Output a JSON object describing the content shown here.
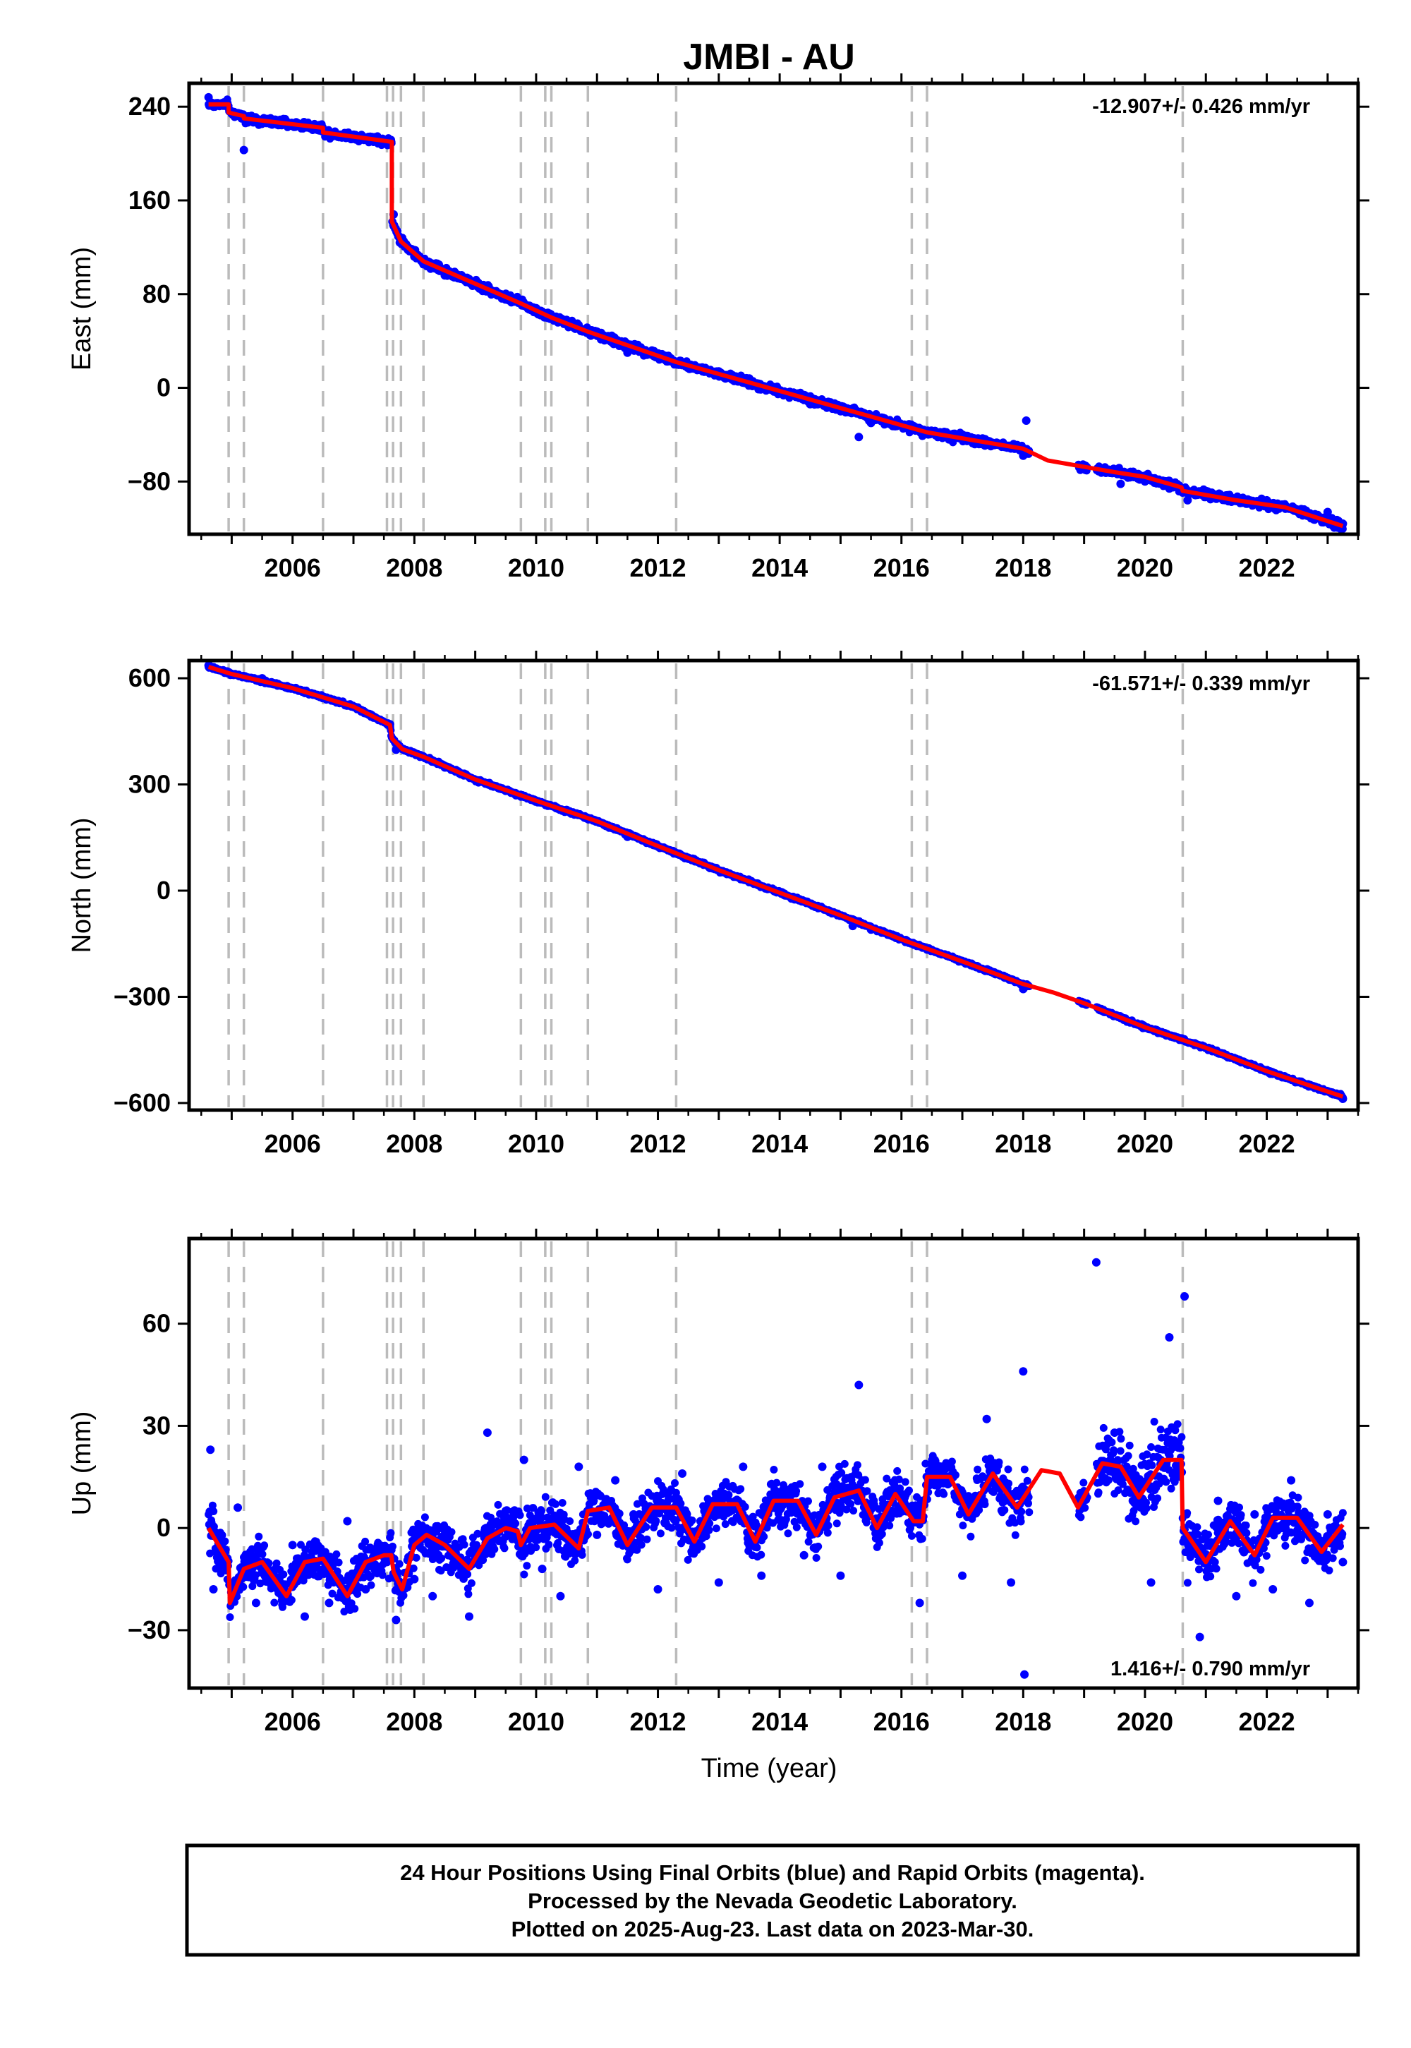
{
  "title": "JMBI - AU",
  "xlabel": "Time (year)",
  "x_ticks": [
    2006,
    2008,
    2010,
    2012,
    2014,
    2016,
    2018,
    2020,
    2022
  ],
  "footer": {
    "line1": "24 Hour Positions Using Final Orbits (blue) and Rapid Orbits (magenta).",
    "line2": "Processed by the Nevada Geodetic Laboratory.",
    "line3": "Plotted on 2025-Aug-23. Last data on 2023-Mar-30."
  },
  "colors": {
    "observations": "#0000ff",
    "model": "#ff0000",
    "equipment_change_lines": "#bbbbbb",
    "frame": "#000000"
  },
  "chart_data": [
    {
      "type": "scatter",
      "component": "East",
      "ylabel": "East (mm)",
      "xlim": [
        2004.3,
        2023.5
      ],
      "ylim": [
        -125,
        260
      ],
      "yticks": [
        -80,
        0,
        80,
        160,
        240
      ],
      "rate_label": "-12.907+/- 0.426 mm/yr",
      "rate_position": "top-right",
      "event_lines": [
        2004.95,
        2005.2,
        2006.5,
        2007.55,
        2007.65,
        2007.78,
        2008.15,
        2009.75,
        2010.15,
        2010.25,
        2010.85,
        2012.3,
        2016.17,
        2016.42,
        2020.62
      ],
      "series": [
        {
          "kind": "model",
          "x": [
            2004.62,
            2004.95,
            2004.95,
            2005.2,
            2005.2,
            2006.5,
            2006.5,
            2007.63,
            2007.63,
            2007.78,
            2008.15,
            2009.75,
            2010.25,
            2010.85,
            2012.3,
            2014.5,
            2016.42,
            2018.0,
            2018.4,
            2019.5,
            2020.0,
            2020.6,
            2020.62,
            2021.5,
            2022.3,
            2023.25
          ],
          "y": [
            242,
            242,
            235,
            232,
            230,
            222,
            218,
            210,
            142,
            125,
            108,
            72,
            60,
            48,
            22,
            -10,
            -38,
            -52,
            -62,
            -72,
            -76,
            -85,
            -88,
            -96,
            -102,
            -118
          ]
        },
        {
          "kind": "observations",
          "x": [
            2004.62,
            2004.7,
            2005.0,
            2005.3,
            2005.5,
            2006.0,
            2006.5,
            2007.0,
            2007.5,
            2007.62,
            2007.66,
            2007.8,
            2008.0,
            2008.5,
            2009.0,
            2009.5,
            2010.0,
            2010.5,
            2011.0,
            2011.5,
            2012.0,
            2012.5,
            2013.0,
            2013.5,
            2014.0,
            2014.5,
            2015.0,
            2015.3,
            2015.5,
            2016.0,
            2016.5,
            2017.0,
            2017.5,
            2018.0,
            2018.05,
            2019.0,
            2019.3,
            2019.6,
            2020.0,
            2020.4,
            2020.7,
            2021.0,
            2021.5,
            2022.0,
            2022.5,
            2023.0,
            2023.25,
            2005.2
          ],
          "y": [
            248,
            240,
            236,
            228,
            226,
            224,
            219,
            216,
            212,
            210,
            148,
            128,
            112,
            96,
            88,
            78,
            68,
            58,
            48,
            30,
            26,
            18,
            14,
            8,
            -2,
            -14,
            -20,
            -42,
            -30,
            -32,
            -38,
            -40,
            -48,
            -58,
            -28,
            -66,
            -70,
            -82,
            -80,
            -86,
            -96,
            -88,
            -96,
            -96,
            -104,
            -106,
            -116,
            203
          ]
        }
      ]
    },
    {
      "type": "scatter",
      "component": "North",
      "ylabel": "North (mm)",
      "xlim": [
        2004.3,
        2023.5
      ],
      "ylim": [
        -620,
        650
      ],
      "yticks": [
        -600,
        -300,
        0,
        300,
        600
      ],
      "rate_label": "-61.571+/- 0.339 mm/yr",
      "rate_position": "top-right",
      "event_lines": [
        2004.95,
        2005.2,
        2006.5,
        2007.55,
        2007.65,
        2007.78,
        2008.15,
        2009.75,
        2010.15,
        2010.25,
        2010.85,
        2012.3,
        2016.17,
        2016.42,
        2020.62
      ],
      "series": [
        {
          "kind": "model",
          "x": [
            2004.62,
            2005.0,
            2006.0,
            2007.0,
            2007.6,
            2007.63,
            2007.8,
            2008.15,
            2009.0,
            2010.0,
            2011.0,
            2012.0,
            2013.0,
            2014.0,
            2015.0,
            2016.0,
            2017.0,
            2018.0,
            2018.5,
            2019.0,
            2020.0,
            2021.0,
            2022.0,
            2023.25
          ],
          "y": [
            632,
            612,
            572,
            520,
            468,
            430,
            400,
            378,
            314,
            254,
            196,
            126,
            58,
            -6,
            -70,
            -138,
            -200,
            -264,
            -288,
            -318,
            -386,
            -444,
            -510,
            -582
          ]
        },
        {
          "kind": "observations",
          "x": [
            2004.62,
            2004.7,
            2005.5,
            2006.5,
            2007.4,
            2007.6,
            2007.7,
            2008.5,
            2009.5,
            2010.5,
            2011.5,
            2012.5,
            2013.5,
            2014.5,
            2015.2,
            2015.5,
            2016.5,
            2017.5,
            2018.0,
            2018.05,
            2019.0,
            2019.5,
            2020.5,
            2021.5,
            2022.5,
            2023.25
          ],
          "y": [
            636,
            628,
            600,
            548,
            484,
            470,
            398,
            348,
            282,
            228,
            152,
            90,
            24,
            -38,
            -100,
            -110,
            -168,
            -230,
            -278,
            -270,
            -318,
            -352,
            -416,
            -476,
            -540,
            -588
          ]
        }
      ]
    },
    {
      "type": "scatter",
      "component": "Up",
      "ylabel": "Up (mm)",
      "xlim": [
        2004.3,
        2023.5
      ],
      "ylim": [
        -47,
        85
      ],
      "yticks": [
        -30,
        0,
        30,
        60
      ],
      "rate_label": "1.416+/- 0.790 mm/yr",
      "rate_position": "bottom-right",
      "event_lines": [
        2004.95,
        2005.2,
        2006.5,
        2007.55,
        2007.65,
        2007.78,
        2008.15,
        2009.75,
        2010.15,
        2010.25,
        2010.85,
        2012.3,
        2016.17,
        2016.42,
        2020.62
      ],
      "series": [
        {
          "kind": "model",
          "x": [
            2004.62,
            2004.75,
            2004.95,
            2004.97,
            2005.2,
            2005.5,
            2005.9,
            2006.2,
            2006.5,
            2006.9,
            2007.2,
            2007.5,
            2007.62,
            2007.66,
            2007.8,
            2008.0,
            2008.2,
            2008.5,
            2008.9,
            2009.2,
            2009.5,
            2009.7,
            2009.75,
            2009.9,
            2010.3,
            2010.7,
            2010.85,
            2011.2,
            2011.5,
            2011.9,
            2012.3,
            2012.6,
            2012.9,
            2013.3,
            2013.6,
            2013.9,
            2014.3,
            2014.6,
            2014.9,
            2015.3,
            2015.6,
            2015.9,
            2016.2,
            2016.35,
            2016.42,
            2016.8,
            2017.1,
            2017.5,
            2017.9,
            2018.3,
            2018.6,
            2018.9,
            2019.3,
            2019.6,
            2019.9,
            2020.3,
            2020.6,
            2020.62,
            2021.0,
            2021.4,
            2021.8,
            2022.1,
            2022.5,
            2022.9,
            2023.25
          ],
          "y": [
            0,
            -4,
            -10,
            -22,
            -12,
            -10,
            -20,
            -10,
            -9,
            -20,
            -10,
            -8,
            -8,
            -13,
            -18,
            -5,
            -2,
            -5,
            -12,
            -3,
            0,
            -1,
            -5,
            0,
            1,
            -6,
            5,
            6,
            -5,
            6,
            6,
            -4,
            7,
            7,
            -4,
            8,
            8,
            -2,
            9,
            11,
            0,
            10,
            2,
            2,
            15,
            15,
            4,
            16,
            6,
            17,
            16,
            6,
            19,
            18,
            9,
            20,
            20,
            0,
            -10,
            2,
            -8,
            3,
            3,
            -7,
            1
          ]
        },
        {
          "kind": "observations",
          "x": [
            2004.65,
            2004.7,
            2005.1,
            2005.4,
            2005.7,
            2006.0,
            2006.2,
            2006.6,
            2006.9,
            2007.2,
            2007.4,
            2007.7,
            2008.0,
            2008.3,
            2008.6,
            2008.9,
            2009.2,
            2009.5,
            2009.8,
            2010.1,
            2010.4,
            2010.7,
            2011.0,
            2011.3,
            2011.6,
            2012.0,
            2012.4,
            2012.7,
            2013.0,
            2013.4,
            2013.7,
            2014.0,
            2014.4,
            2014.7,
            2015.0,
            2015.3,
            2015.6,
            2016.0,
            2016.3,
            2016.6,
            2017.0,
            2017.4,
            2017.8,
            2018.0,
            2018.02,
            2019.2,
            2019.5,
            2019.8,
            2020.1,
            2020.4,
            2020.65,
            2020.9,
            2021.2,
            2021.5,
            2021.8,
            2022.1,
            2022.4,
            2022.7,
            2023.0,
            2023.25
          ],
          "y": [
            23,
            -18,
            6,
            -22,
            -14,
            -5,
            -26,
            -22,
            2,
            -18,
            -12,
            -27,
            -15,
            -20,
            -8,
            -26,
            28,
            5,
            20,
            -12,
            -20,
            18,
            -2,
            14,
            4,
            -18,
            16,
            2,
            -16,
            18,
            -14,
            10,
            -8,
            18,
            -14,
            42,
            0,
            10,
            -22,
            18,
            -14,
            32,
            -16,
            46,
            -43,
            78,
            28,
            8,
            -16,
            56,
            68,
            -32,
            8,
            -20,
            4,
            -18,
            14,
            -22,
            4,
            -10
          ]
        }
      ]
    }
  ]
}
